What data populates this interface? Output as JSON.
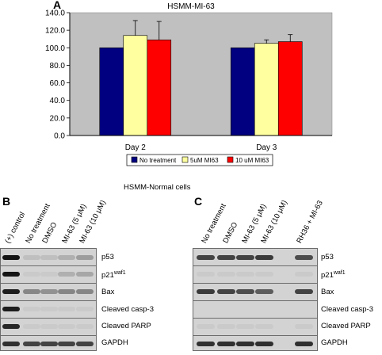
{
  "panelA": {
    "letter": "A",
    "title": "HSMM-MI-63",
    "chart_data": {
      "type": "bar",
      "title": "HSMM-MI-63",
      "categories": [
        "Day 2",
        "Day 3"
      ],
      "series": [
        {
          "name": "No treatment",
          "values": [
            100,
            100
          ],
          "errors": [
            0,
            0
          ],
          "color": "#000080"
        },
        {
          "name": "5uM MI63",
          "values": [
            114,
            105
          ],
          "errors": [
            17,
            4
          ],
          "color": "#ffffa0"
        },
        {
          "name": "10 uM MI63",
          "values": [
            109,
            107
          ],
          "errors": [
            21,
            8
          ],
          "color": "#ff0000"
        }
      ],
      "ylim": [
        0,
        140
      ],
      "yticks": [
        "0.0",
        "20.0",
        "40.0",
        "60.0",
        "80.0",
        "100.0",
        "120.0",
        "140.0"
      ],
      "grid": false,
      "background": "#c0c0c0",
      "legend_position": "bottom"
    }
  },
  "panelB": {
    "letter": "B",
    "header": "HSMM-Normal cells",
    "lanes": [
      "(+) control",
      "No treatment",
      "DMSO",
      "MI-63 (5 μM)",
      "MI-63 (10 μM)"
    ],
    "rows": [
      "p53",
      "p21waf1",
      "Bax",
      "Cleaved casp-3",
      "Cleaved PARP",
      "GAPDH"
    ]
  },
  "panelC": {
    "letter": "C",
    "lanes": [
      "No treatment",
      "DMSO",
      "MI-63 (5 μM)",
      "MI-63 (10 μM)",
      "RH36 + MI-63"
    ],
    "rows": [
      "p53",
      "p21waf1",
      "Bax",
      "Cleaved casp-3",
      "Cleaved PARP",
      "GAPDH"
    ]
  },
  "labels": {
    "p21_main": "p21",
    "p21_sup": "waf1"
  }
}
